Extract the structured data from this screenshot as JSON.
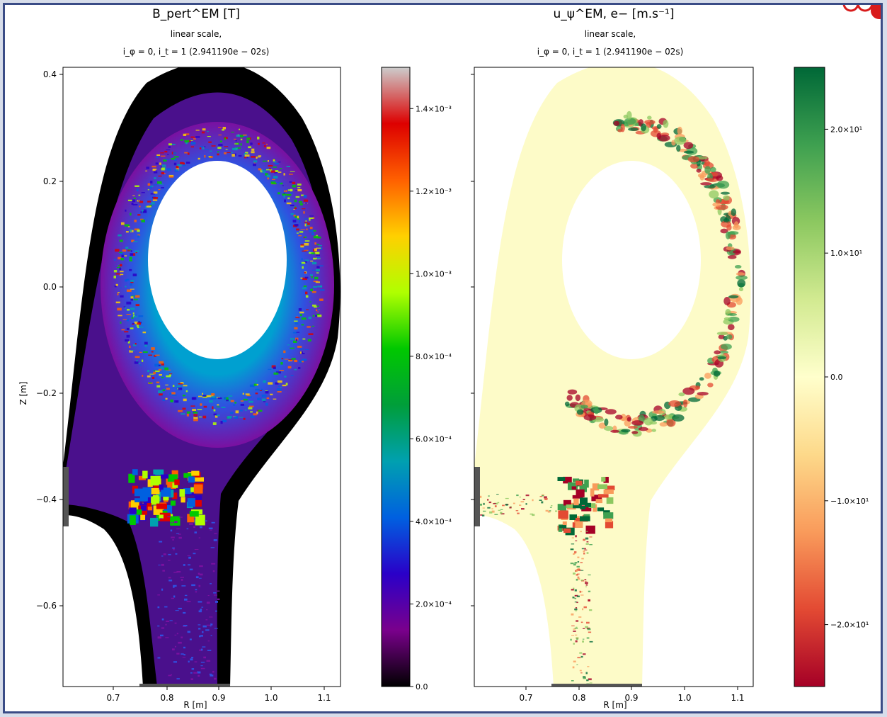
{
  "chart_data": [
    {
      "type": "heatmap",
      "title": "B_pert^EM [T]",
      "subtitle": "linear scale,",
      "time_label": "i_φ = 0,  i_t = 1 (2.941190e − 02s)",
      "xlabel": "R [m]",
      "ylabel": "Z [m]",
      "xlim": [
        0.61,
        1.13
      ],
      "ylim": [
        -0.76,
        0.41
      ],
      "xticks": [
        0.7,
        0.8,
        0.9,
        1.0,
        1.1
      ],
      "xtick_labels": [
        "0.7",
        "0.8",
        "0.9",
        "1.0",
        "1.1"
      ],
      "yticks": [
        0.4,
        0.2,
        0.0,
        -0.2,
        -0.4,
        -0.6
      ],
      "ytick_labels": [
        "0.4",
        "0.2",
        "0.0",
        "−0.2",
        "−0.4",
        "−0.6"
      ],
      "colorscale": "spectral",
      "colorbar": {
        "min": 0.0,
        "max": 0.0015,
        "ticks": [
          0.0,
          0.0002,
          0.0004,
          0.0006,
          0.0008,
          0.001,
          0.0012,
          0.0014
        ],
        "tick_labels": [
          "0.0",
          "2.0×10⁻⁴",
          "4.0×10⁻⁴",
          "6.0×10⁻⁴",
          "8.0×10⁻⁴",
          "1.0×10⁻³",
          "1.2×10⁻³",
          "1.4×10⁻³"
        ],
        "colors": [
          "#000000",
          "#7a008c",
          "#2a00c8",
          "#0060e0",
          "#00a0b0",
          "#009e3a",
          "#00c800",
          "#b0ff00",
          "#ffd000",
          "#ff6000",
          "#dd0000",
          "#cccccc"
        ]
      }
    },
    {
      "type": "heatmap",
      "title": "u_ψ^EM, e− [m.s⁻¹]",
      "subtitle": "linear scale,",
      "time_label": "i_φ = 0,  i_t = 1 (2.941190e − 02s)",
      "xlabel": "R [m]",
      "ylabel": "",
      "xlim": [
        0.61,
        1.13
      ],
      "ylim": [
        -0.76,
        0.41
      ],
      "xticks": [
        0.7,
        0.8,
        0.9,
        1.0,
        1.1
      ],
      "xtick_labels": [
        "0.7",
        "0.8",
        "0.9",
        "1.0",
        "1.1"
      ],
      "colorscale": "RdYlGn",
      "colorbar": {
        "min": -25,
        "max": 25,
        "ticks": [
          20,
          10,
          0,
          -10,
          -20
        ],
        "tick_labels": [
          "2.0×10¹",
          "1.0×10¹",
          "0.0",
          "−1.0×10¹",
          "−2.0×10¹"
        ],
        "colors": [
          "#a50026",
          "#e34a33",
          "#f99b5b",
          "#fdd98a",
          "#ffffcc",
          "#d2ea91",
          "#8cc860",
          "#3ea050",
          "#006837"
        ]
      }
    }
  ]
}
